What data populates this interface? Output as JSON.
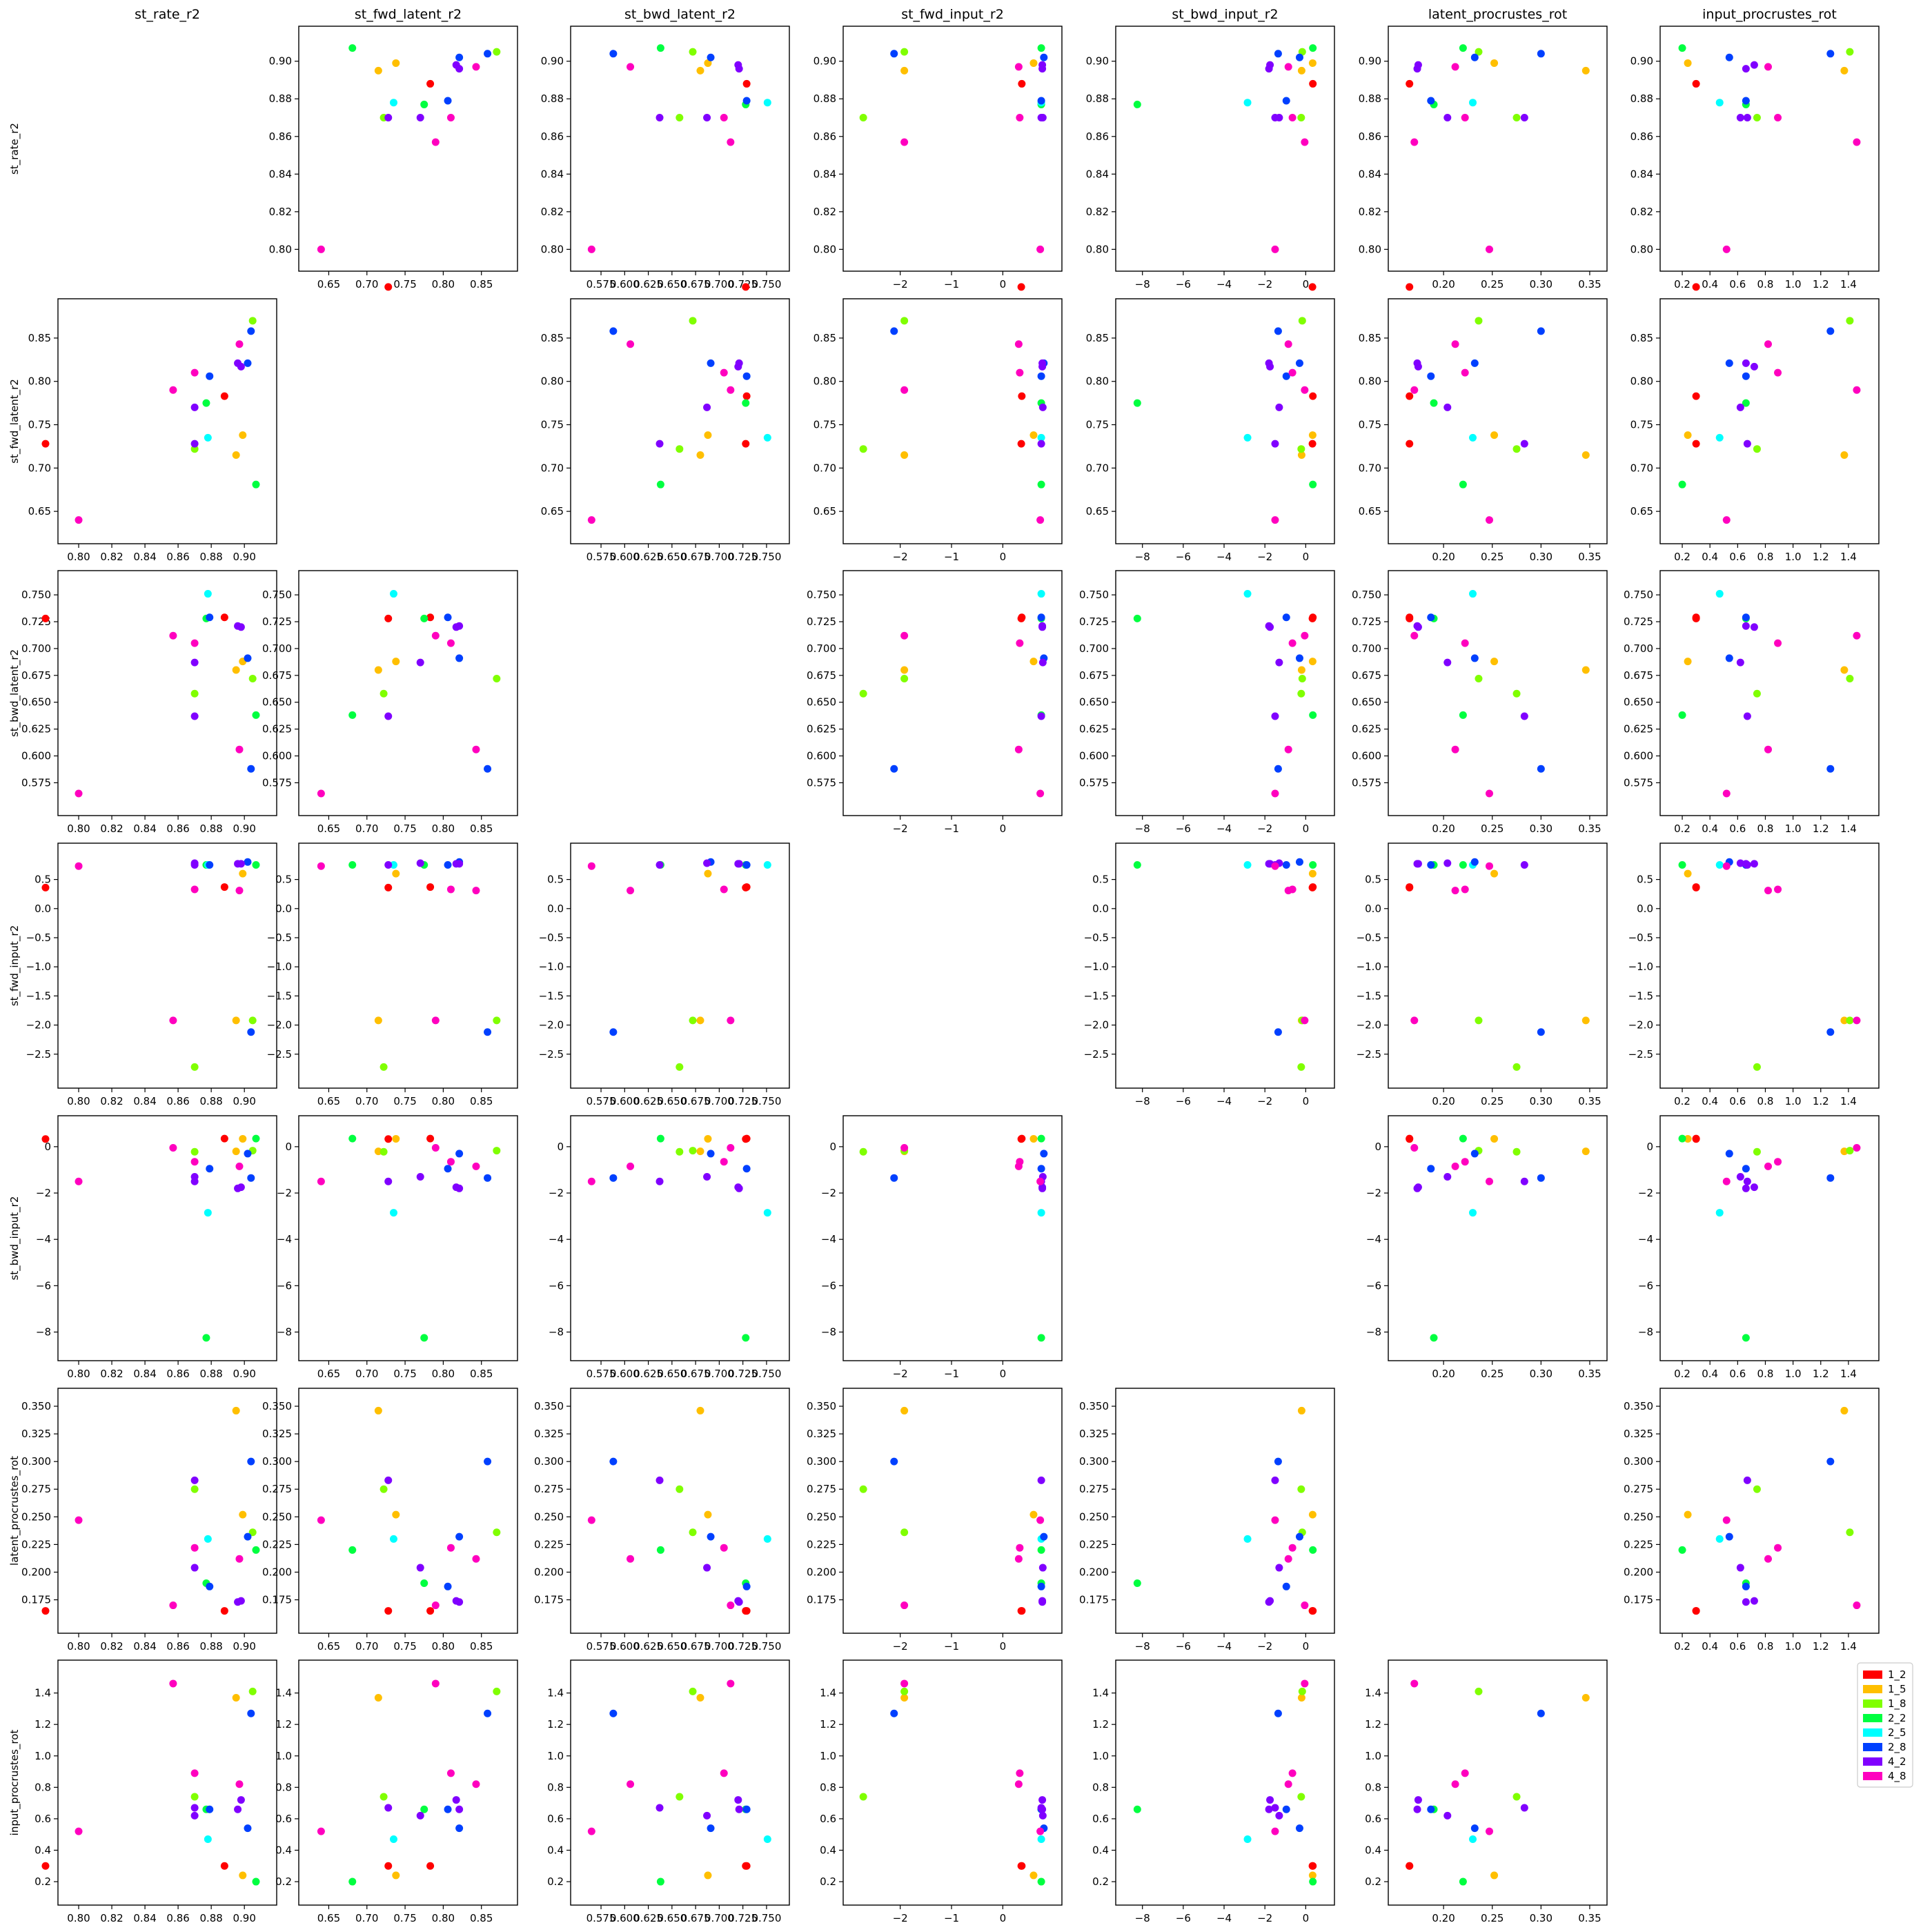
{
  "chart_data": {
    "type": "scatter",
    "layout": "pairplot",
    "variables": [
      "st_rate_r2",
      "st_fwd_latent_r2",
      "st_bwd_latent_r2",
      "st_fwd_input_r2",
      "st_bwd_input_r2",
      "latent_procrustes_rot",
      "input_procrustes_rot"
    ],
    "groups": [
      {
        "name": "1_2",
        "color": "#ff0000"
      },
      {
        "name": "1_5",
        "color": "#ffbf00"
      },
      {
        "name": "1_8",
        "color": "#80ff00"
      },
      {
        "name": "2_2",
        "color": "#00ff40"
      },
      {
        "name": "2_5",
        "color": "#00ffff"
      },
      {
        "name": "2_8",
        "color": "#0040ff"
      },
      {
        "name": "4_2",
        "color": "#8000ff"
      },
      {
        "name": "4_8",
        "color": "#ff00bf"
      }
    ],
    "axes": [
      {
        "range": [
          0.795,
          0.912
        ],
        "ticks": [
          0.8,
          0.82,
          0.84,
          0.86,
          0.88,
          0.9
        ],
        "tick_labels": [
          "0.80",
          "0.82",
          "0.84",
          "0.86",
          "0.88",
          "0.90"
        ]
      },
      {
        "range": [
          0.627,
          0.881
        ],
        "ticks": [
          0.65,
          0.7,
          0.75,
          0.8,
          0.85
        ],
        "tick_labels": [
          "0.65",
          "0.70",
          "0.75",
          "0.80",
          "0.85"
        ]
      },
      {
        "range": [
          0.556,
          0.761
        ],
        "ticks": [
          0.575,
          0.6,
          0.625,
          0.65,
          0.675,
          0.7,
          0.725,
          0.75
        ],
        "tick_labels": [
          "0.575",
          "0.600",
          "0.625",
          "0.650",
          "0.675",
          "0.700",
          "0.725",
          "0.750"
        ]
      },
      {
        "range": [
          -2.87,
          0.91
        ],
        "ticks": [
          -2.5,
          -2.0,
          -1.5,
          -1.0,
          -0.5,
          0.0,
          0.5
        ],
        "tick_labels": [
          "−2.5",
          "−2.0",
          "−1.5",
          "−1.0",
          "−0.5",
          "0.0",
          "0.5"
        ],
        "alt_ticks": [
          -2,
          -1,
          0
        ],
        "alt_tick_labels": [
          "−2",
          "−1",
          "0"
        ]
      },
      {
        "range": [
          -8.7,
          0.8
        ],
        "ticks": [
          -8,
          -6,
          -4,
          -2,
          0
        ],
        "tick_labels": [
          "−8",
          "−6",
          "−4",
          "−2",
          "0"
        ]
      },
      {
        "range": [
          0.156,
          0.355
        ],
        "ticks": [
          0.175,
          0.2,
          0.225,
          0.25,
          0.275,
          0.3,
          0.325,
          0.35
        ],
        "tick_labels": [
          "0.175",
          "0.200",
          "0.225",
          "0.250",
          "0.275",
          "0.300",
          "0.325",
          "0.350"
        ],
        "alt_ticks": [
          0.2,
          0.25,
          0.3,
          0.35
        ],
        "alt_tick_labels": [
          "0.20",
          "0.25",
          "0.30",
          "0.35"
        ]
      },
      {
        "range": [
          0.13,
          1.53
        ],
        "ticks": [
          0.2,
          0.4,
          0.6,
          0.8,
          1.0,
          1.2,
          1.4
        ],
        "tick_labels": [
          "0.2",
          "0.4",
          "0.6",
          "0.8",
          "1.0",
          "1.2",
          "1.4"
        ]
      }
    ],
    "points": [
      {
        "group": "1_2",
        "values": [
          0.888,
          0.783,
          0.729,
          0.37,
          0.35,
          0.165,
          0.3
        ]
      },
      {
        "group": "1_2",
        "values": [
          0.78,
          0.728,
          0.728,
          0.36,
          0.33,
          0.165,
          0.3
        ]
      },
      {
        "group": "1_5",
        "values": [
          0.899,
          0.738,
          0.688,
          0.6,
          0.34,
          0.252,
          0.24
        ]
      },
      {
        "group": "1_5",
        "values": [
          0.895,
          0.715,
          0.68,
          -1.92,
          -0.2,
          0.346,
          1.37
        ]
      },
      {
        "group": "1_8",
        "values": [
          0.905,
          0.87,
          0.672,
          -1.92,
          -0.17,
          0.236,
          1.41
        ]
      },
      {
        "group": "1_8",
        "values": [
          0.87,
          0.722,
          0.658,
          -2.72,
          -0.22,
          0.275,
          0.74
        ]
      },
      {
        "group": "2_2",
        "values": [
          0.877,
          0.775,
          0.728,
          0.75,
          -8.25,
          0.19,
          0.66
        ]
      },
      {
        "group": "2_2",
        "values": [
          0.907,
          0.681,
          0.638,
          0.75,
          0.35,
          0.22,
          0.2
        ]
      },
      {
        "group": "2_5",
        "values": [
          0.878,
          0.735,
          0.751,
          0.75,
          -2.85,
          0.23,
          0.47
        ]
      },
      {
        "group": "2_8",
        "values": [
          0.904,
          0.858,
          0.588,
          -2.12,
          -1.35,
          0.3,
          1.27
        ]
      },
      {
        "group": "2_8",
        "values": [
          0.879,
          0.806,
          0.729,
          0.75,
          -0.95,
          0.187,
          0.66
        ]
      },
      {
        "group": "2_8",
        "values": [
          0.902,
          0.821,
          0.691,
          0.8,
          -0.3,
          0.232,
          0.54
        ]
      },
      {
        "group": "4_2",
        "values": [
          0.87,
          0.728,
          0.637,
          0.75,
          -1.5,
          0.283,
          0.67
        ]
      },
      {
        "group": "4_2",
        "values": [
          0.87,
          0.77,
          0.687,
          0.78,
          -1.3,
          0.204,
          0.62
        ]
      },
      {
        "group": "4_2",
        "values": [
          0.898,
          0.817,
          0.72,
          0.77,
          -1.75,
          0.174,
          0.72
        ]
      },
      {
        "group": "4_2",
        "values": [
          0.896,
          0.821,
          0.721,
          0.77,
          -1.8,
          0.173,
          0.66
        ]
      },
      {
        "group": "4_8",
        "values": [
          0.8,
          0.64,
          0.565,
          0.73,
          -1.5,
          0.247,
          0.52
        ]
      },
      {
        "group": "4_8",
        "values": [
          0.857,
          0.79,
          0.712,
          -1.92,
          -0.05,
          0.17,
          1.46
        ]
      },
      {
        "group": "4_8",
        "values": [
          0.87,
          0.81,
          0.705,
          0.33,
          -0.65,
          0.222,
          0.89
        ]
      },
      {
        "group": "4_8",
        "values": [
          0.897,
          0.843,
          0.606,
          0.31,
          -0.85,
          0.212,
          0.82
        ]
      }
    ],
    "grid": false,
    "legend_position": "right, bottom-right cell"
  }
}
